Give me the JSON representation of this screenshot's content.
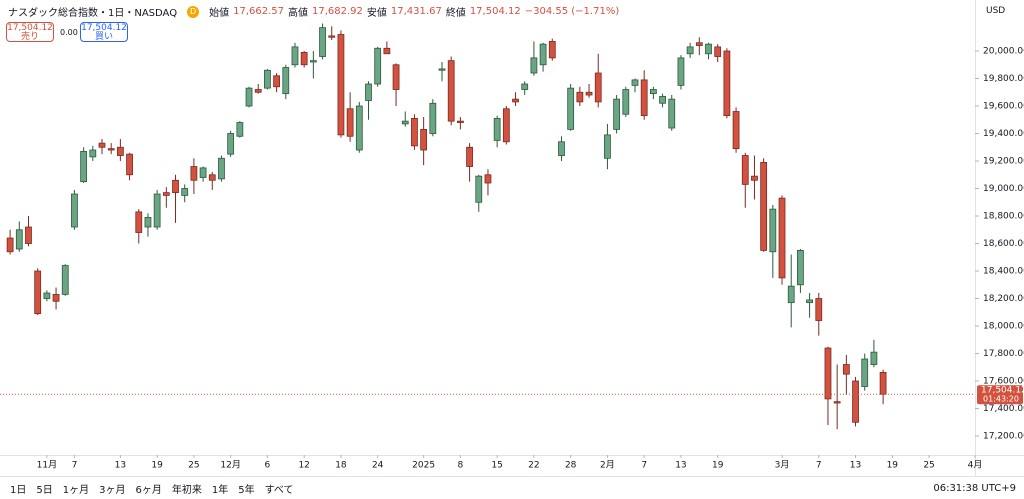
{
  "header": {
    "symbol": "ナスダック総合指数・1日・NASDAQ",
    "badge": "D",
    "ohlc": [
      {
        "label": "始値",
        "value": "17,662.57"
      },
      {
        "label": "高値",
        "value": "17,682.92"
      },
      {
        "label": "安値",
        "value": "17,431.67"
      },
      {
        "label": "終値",
        "value": "17,504.12"
      }
    ],
    "change": "−304.55 (−1.71%)"
  },
  "trade": {
    "sell_price": "17,504.12",
    "sell": "売り",
    "spread": "0.00",
    "buy_price": "17,504.12",
    "buy": "買い"
  },
  "currency": "USD",
  "chart_data": {
    "type": "candlestick",
    "up_color": "#6aa584",
    "down_color": "#d2523f",
    "open": [
      18640,
      18560,
      18720,
      18400,
      18200,
      18230,
      18230,
      18720,
      19050,
      19230,
      19330,
      19290,
      19300,
      19250,
      18830,
      18720,
      18720,
      18970,
      19060,
      18950,
      19160,
      19080,
      19100,
      19070,
      19250,
      19380,
      19600,
      19720,
      19730,
      19820,
      19690,
      19900,
      19990,
      19920,
      19960,
      20110,
      20120,
      19580,
      19280,
      19640,
      19760,
      20020,
      19900,
      19470,
      19510,
      19430,
      19400,
      19860,
      19930,
      19490,
      19300,
      18900,
      19100,
      19350,
      19580,
      19650,
      19720,
      19840,
      19900,
      20070,
      19240,
      19430,
      19700,
      19700,
      19840,
      19220,
      19430,
      19540,
      19750,
      19790,
      19690,
      19620,
      19440,
      19750,
      19980,
      20060,
      19980,
      20030,
      20000,
      19560,
      19240,
      19090,
      19190,
      18540,
      18930,
      18170,
      18300,
      18170,
      18200,
      17840,
      17450,
      17720,
      17600,
      17560,
      17720,
      17662.57
    ],
    "high": [
      18700,
      18760,
      18800,
      18420,
      18260,
      18280,
      18450,
      18990,
      19300,
      19310,
      19360,
      19330,
      19360,
      19260,
      18850,
      18820,
      18990,
      19010,
      19100,
      19030,
      19220,
      19160,
      19120,
      19240,
      19420,
      19490,
      19740,
      19760,
      19870,
      19840,
      19900,
      20060,
      20000,
      20000,
      20200,
      20180,
      20150,
      19700,
      19630,
      19780,
      20030,
      20070,
      19910,
      19560,
      19540,
      19520,
      19650,
      19920,
      19960,
      19520,
      19330,
      19100,
      19140,
      19530,
      19600,
      19700,
      19780,
      20070,
      20060,
      20090,
      19380,
      19760,
      19740,
      19760,
      19980,
      19470,
      19680,
      19740,
      19800,
      19860,
      19740,
      19690,
      19680,
      19970,
      20060,
      20100,
      20060,
      20050,
      20020,
      19590,
      19260,
      19240,
      19220,
      18880,
      18950,
      18520,
      18560,
      18240,
      18240,
      17850,
      17720,
      17790,
      17630,
      17800,
      17900,
      17682.92
    ],
    "low": [
      18520,
      18540,
      18580,
      18080,
      18180,
      18120,
      18220,
      18700,
      19040,
      19200,
      19250,
      19250,
      19200,
      19060,
      18600,
      18650,
      18700,
      18860,
      18750,
      18900,
      18960,
      19050,
      18990,
      19050,
      19230,
      19370,
      19590,
      19690,
      19720,
      19700,
      19650,
      19880,
      19880,
      19800,
      19940,
      20080,
      19370,
      19340,
      19260,
      19500,
      19740,
      19980,
      19600,
      19450,
      19280,
      19170,
      19380,
      19780,
      19460,
      19430,
      19050,
      18830,
      18950,
      19300,
      19320,
      19600,
      19680,
      19820,
      19850,
      19930,
      19200,
      19420,
      19600,
      19660,
      19590,
      19140,
      19400,
      19520,
      19700,
      19500,
      19650,
      19590,
      19420,
      19720,
      19950,
      19970,
      19940,
      19920,
      19510,
      19260,
      18860,
      18920,
      18540,
      18350,
      18300,
      17990,
      18240,
      18060,
      17930,
      17280,
      17250,
      17500,
      17270,
      17530,
      17700,
      17431.67
    ],
    "close": [
      18540,
      18700,
      18600,
      18090,
      18240,
      18180,
      18440,
      18960,
      19270,
      19280,
      19300,
      19280,
      19240,
      19100,
      18680,
      18790,
      18960,
      18950,
      18970,
      19000,
      19060,
      19150,
      19060,
      19220,
      19400,
      19480,
      19730,
      19700,
      19860,
      19740,
      19880,
      20030,
      19900,
      19930,
      20170,
      20100,
      19390,
      19380,
      19600,
      19760,
      20020,
      19980,
      19720,
      19490,
      19310,
      19280,
      19620,
      19870,
      19490,
      19480,
      19160,
      19090,
      19040,
      19510,
      19340,
      19630,
      19760,
      19950,
      20050,
      19950,
      19340,
      19730,
      19630,
      19680,
      19630,
      19390,
      19650,
      19720,
      19790,
      19530,
      19720,
      19670,
      19650,
      19950,
      20030,
      20040,
      20050,
      19960,
      19530,
      19290,
      19030,
      19060,
      18550,
      18850,
      18350,
      18290,
      18550,
      18190,
      18040,
      17470,
      17440,
      17650,
      17300,
      17760,
      17810,
      17504.12
    ],
    "xlim": [
      -1.1,
      105
    ],
    "xticks": [
      {
        "value": 4,
        "label": "11月"
      },
      {
        "value": 7,
        "label": "7"
      },
      {
        "value": 12,
        "label": "13"
      },
      {
        "value": 16,
        "label": "19"
      },
      {
        "value": 20,
        "label": "25"
      },
      {
        "value": 24,
        "label": "12月"
      },
      {
        "value": 28,
        "label": "6"
      },
      {
        "value": 32,
        "label": "12"
      },
      {
        "value": 36,
        "label": "18"
      },
      {
        "value": 40,
        "label": "24"
      },
      {
        "value": 45,
        "label": "2025"
      },
      {
        "value": 49,
        "label": "8"
      },
      {
        "value": 53,
        "label": "15"
      },
      {
        "value": 57,
        "label": "22"
      },
      {
        "value": 61,
        "label": "28"
      },
      {
        "value": 65,
        "label": "2月"
      },
      {
        "value": 69,
        "label": "7"
      },
      {
        "value": 73,
        "label": "13"
      },
      {
        "value": 77,
        "label": "19"
      },
      {
        "value": 84,
        "label": "3月"
      },
      {
        "value": 88,
        "label": "7"
      },
      {
        "value": 92,
        "label": "13"
      },
      {
        "value": 96,
        "label": "19"
      },
      {
        "value": 100,
        "label": "25"
      },
      {
        "value": 105,
        "label": "4月"
      }
    ],
    "ylim": [
      17062,
      20371
    ],
    "yticks": [
      {
        "value": 17200,
        "label": "17,200.00"
      },
      {
        "value": 17400,
        "label": "17,400.00"
      },
      {
        "value": 17600,
        "label": "17,600.00"
      },
      {
        "value": 17800,
        "label": "17,800.00"
      },
      {
        "value": 18000,
        "label": "18,000.00"
      },
      {
        "value": 18200,
        "label": "18,200.00"
      },
      {
        "value": 18400,
        "label": "18,400.00"
      },
      {
        "value": 18600,
        "label": "18,600.00"
      },
      {
        "value": 18800,
        "label": "18,800.00"
      },
      {
        "value": 19000,
        "label": "19,000.00"
      },
      {
        "value": 19200,
        "label": "19,200.00"
      },
      {
        "value": 19400,
        "label": "19,400.00"
      },
      {
        "value": 19600,
        "label": "19,600.00"
      },
      {
        "value": 19800,
        "label": "19,800.00"
      },
      {
        "value": 20000,
        "label": "20,000.00"
      }
    ],
    "price_tag": {
      "label": "17,504.12",
      "countdown": "01:43:20"
    }
  },
  "ranges": [
    "1日",
    "5日",
    "1ヶ月",
    "3ヶ月",
    "6ヶ月",
    "年初来",
    "1年",
    "5年",
    "すべて"
  ],
  "time": "06:31:38 UTC+9"
}
